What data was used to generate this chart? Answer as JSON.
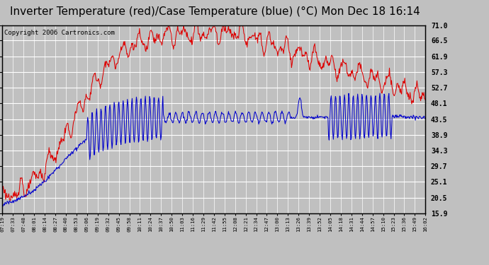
{
  "title": "Inverter Temperature (red)/Case Temperature (blue) (°C) Mon Dec 18 16:14",
  "copyright": "Copyright 2006 Cartronics.com",
  "yticks": [
    71.0,
    66.5,
    61.9,
    57.3,
    52.7,
    48.1,
    43.5,
    38.9,
    34.3,
    29.7,
    25.1,
    20.5,
    15.9
  ],
  "ylim": [
    15.9,
    71.0
  ],
  "xtick_labels": [
    "07:19",
    "07:33",
    "07:48",
    "08:01",
    "08:14",
    "08:27",
    "08:40",
    "08:53",
    "09:06",
    "09:19",
    "09:32",
    "09:45",
    "09:58",
    "10:11",
    "10:24",
    "10:37",
    "10:50",
    "11:03",
    "11:16",
    "11:29",
    "11:42",
    "11:55",
    "12:08",
    "12:21",
    "12:34",
    "12:47",
    "13:00",
    "13:13",
    "13:26",
    "13:39",
    "13:52",
    "14:05",
    "14:18",
    "14:31",
    "14:44",
    "14:57",
    "15:10",
    "15:23",
    "15:36",
    "15:49",
    "16:02"
  ],
  "bg_color": "#c0c0c0",
  "plot_bg_color": "#c0c0c0",
  "grid_color": "#ffffff",
  "line_color_red": "#dd0000",
  "line_color_blue": "#0000cc",
  "title_fontsize": 11,
  "copyright_fontsize": 6.5
}
